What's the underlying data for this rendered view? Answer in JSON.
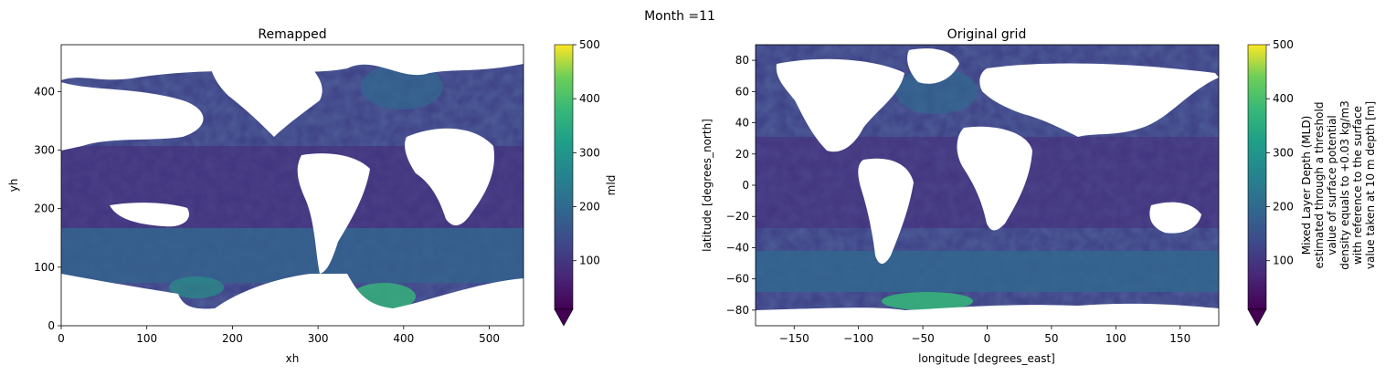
{
  "figure": {
    "suptitle": "Month =11"
  },
  "chart_data": [
    {
      "type": "heatmap",
      "title": "Remapped",
      "xlabel": "xh",
      "ylabel": "yh",
      "xlim": [
        0,
        540
      ],
      "ylim": [
        0,
        480
      ],
      "xticks": [
        0,
        100,
        200,
        300,
        400,
        500
      ],
      "yticks": [
        0,
        100,
        200,
        300,
        400
      ],
      "colorbar": {
        "label": "mld",
        "min": 10,
        "max": 500,
        "ticks": [
          100,
          200,
          300,
          400,
          500
        ],
        "extend": "min",
        "colormap": "viridis"
      },
      "regions": [
        {
          "name": "north-atlantic-band",
          "x": [
            330,
            440
          ],
          "y": [
            300,
            430
          ],
          "value": 110
        },
        {
          "name": "southern-ocean-band",
          "x": [
            0,
            540
          ],
          "y": [
            70,
            160
          ],
          "value": 150
        },
        {
          "name": "weddell-sea-deep",
          "x": [
            355,
            400
          ],
          "y": [
            30,
            60
          ],
          "value": 300
        },
        {
          "name": "ross-sea",
          "x": [
            180,
            235
          ],
          "y": [
            35,
            75
          ],
          "value": 220
        },
        {
          "name": "open-ocean",
          "x": [
            0,
            540
          ],
          "y": [
            160,
            300
          ],
          "value": 45
        }
      ]
    },
    {
      "type": "heatmap",
      "title": "Original grid",
      "xlabel": "longitude [degrees_east]",
      "ylabel": "latitude [degrees_north]",
      "xlim": [
        -180,
        180
      ],
      "ylim": [
        -90,
        90
      ],
      "xticks": [
        -150,
        -100,
        -50,
        0,
        50,
        100,
        150
      ],
      "yticks": [
        -80,
        -60,
        -40,
        -20,
        0,
        20,
        40,
        60,
        80
      ],
      "colorbar": {
        "label_lines": [
          "Mixed Layer Depth (MLD)",
          "estimated through a threshold",
          "value of surface potential",
          "density equals to +0.03 kg/m3",
          "with reference to the surface",
          "value taken at 10 m depth [m]"
        ],
        "min": 10,
        "max": 500,
        "ticks": [
          100,
          200,
          300,
          400,
          500
        ],
        "extend": "min",
        "colormap": "viridis"
      },
      "regions": [
        {
          "name": "southern-ocean-band",
          "lon": [
            -180,
            180
          ],
          "lat": [
            -65,
            -40
          ],
          "value": 160
        },
        {
          "name": "weddell-sea-deep",
          "lon": [
            -60,
            -20
          ],
          "lat": [
            -80,
            -70
          ],
          "value": 300
        },
        {
          "name": "north-atlantic",
          "lon": [
            -60,
            0
          ],
          "lat": [
            40,
            70
          ],
          "value": 120
        },
        {
          "name": "tropics",
          "lon": [
            -180,
            180
          ],
          "lat": [
            -30,
            30
          ],
          "value": 40
        }
      ]
    }
  ]
}
